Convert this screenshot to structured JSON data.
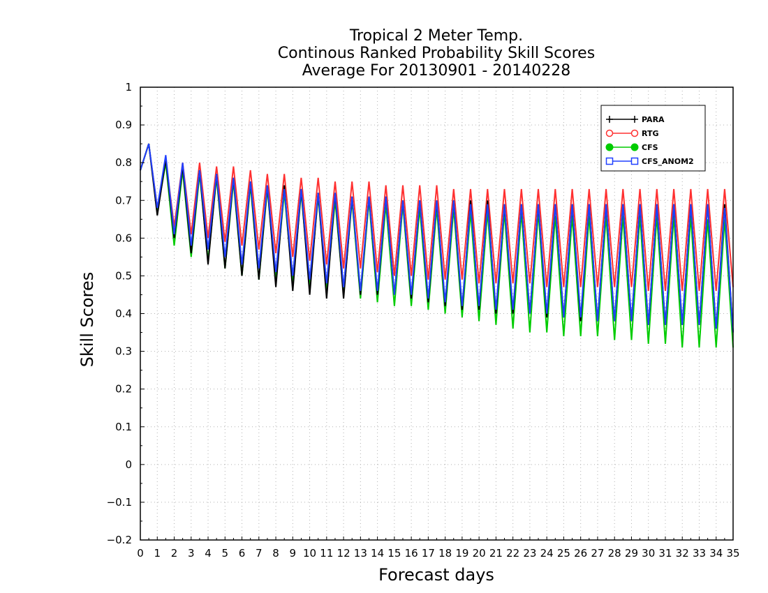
{
  "chart_data": {
    "type": "line",
    "title_lines": [
      "Tropical 2 Meter Temp.",
      "Continous Ranked Probability Skill Scores",
      "Average For 20130901 - 20140228"
    ],
    "xlabel": "Forecast days",
    "ylabel": "Skill Scores",
    "xlim": [
      0,
      35
    ],
    "ylim": [
      -0.2,
      1
    ],
    "x_ticks": [
      "0",
      "1",
      "2",
      "3",
      "4",
      "5",
      "6",
      "7",
      "8",
      "9",
      "10",
      "11",
      "12",
      "13",
      "14",
      "15",
      "16",
      "17",
      "18",
      "19",
      "20",
      "21",
      "22",
      "23",
      "24",
      "25",
      "26",
      "27",
      "28",
      "29",
      "30",
      "31",
      "32",
      "33",
      "34",
      "35"
    ],
    "y_ticks": [
      "−0.2",
      "−0.1",
      "0",
      "0.1",
      "0.2",
      "0.3",
      "0.4",
      "0.5",
      "0.6",
      "0.7",
      "0.8",
      "0.9",
      "1"
    ],
    "grid": true,
    "legend_position": "top-right",
    "x_step": 0.5,
    "series": [
      {
        "name": "PARA",
        "color": "#000000",
        "marker": "plus",
        "values": [
          0.78,
          0.85,
          0.66,
          0.81,
          0.6,
          0.79,
          0.56,
          0.78,
          0.53,
          0.77,
          0.52,
          0.76,
          0.5,
          0.75,
          0.49,
          0.74,
          0.47,
          0.74,
          0.46,
          0.73,
          0.45,
          0.72,
          0.44,
          0.72,
          0.44,
          0.71,
          0.45,
          0.71,
          0.45,
          0.71,
          0.45,
          0.7,
          0.44,
          0.7,
          0.43,
          0.7,
          0.42,
          0.7,
          0.41,
          0.7,
          0.41,
          0.7,
          0.4,
          0.69,
          0.4,
          0.69,
          0.4,
          0.69,
          0.39,
          0.69,
          0.39,
          0.69,
          0.38,
          0.69,
          0.38,
          0.69,
          0.38,
          0.69,
          0.38,
          0.69,
          0.37,
          0.69,
          0.37,
          0.69,
          0.37,
          0.69,
          0.37,
          0.69,
          0.36,
          0.69,
          0.35
        ]
      },
      {
        "name": "RTG",
        "color": "#ff3030",
        "marker": "circle",
        "values": [
          0.78,
          0.85,
          0.68,
          0.81,
          0.63,
          0.8,
          0.61,
          0.8,
          0.6,
          0.79,
          0.59,
          0.79,
          0.58,
          0.78,
          0.57,
          0.77,
          0.56,
          0.77,
          0.55,
          0.76,
          0.54,
          0.76,
          0.53,
          0.75,
          0.52,
          0.75,
          0.52,
          0.75,
          0.51,
          0.74,
          0.5,
          0.74,
          0.5,
          0.74,
          0.49,
          0.74,
          0.49,
          0.73,
          0.49,
          0.73,
          0.48,
          0.73,
          0.48,
          0.73,
          0.48,
          0.73,
          0.48,
          0.73,
          0.47,
          0.73,
          0.47,
          0.73,
          0.47,
          0.73,
          0.47,
          0.73,
          0.47,
          0.73,
          0.47,
          0.73,
          0.46,
          0.73,
          0.46,
          0.73,
          0.46,
          0.73,
          0.46,
          0.73,
          0.46,
          0.73,
          0.47
        ]
      },
      {
        "name": "CFS",
        "color": "#00cc00",
        "marker": "filled-circle",
        "values": [
          0.78,
          0.85,
          0.67,
          0.8,
          0.58,
          0.78,
          0.55,
          0.77,
          0.54,
          0.76,
          0.52,
          0.75,
          0.5,
          0.74,
          0.49,
          0.73,
          0.49,
          0.72,
          0.48,
          0.72,
          0.47,
          0.71,
          0.46,
          0.7,
          0.45,
          0.7,
          0.44,
          0.7,
          0.43,
          0.69,
          0.42,
          0.69,
          0.42,
          0.68,
          0.41,
          0.68,
          0.4,
          0.68,
          0.39,
          0.67,
          0.38,
          0.67,
          0.37,
          0.67,
          0.36,
          0.67,
          0.35,
          0.67,
          0.35,
          0.66,
          0.34,
          0.66,
          0.34,
          0.66,
          0.34,
          0.66,
          0.33,
          0.66,
          0.33,
          0.66,
          0.32,
          0.66,
          0.32,
          0.66,
          0.31,
          0.66,
          0.31,
          0.65,
          0.31,
          0.65,
          0.31
        ]
      },
      {
        "name": "CFS_ANOM2",
        "color": "#2040ff",
        "marker": "square",
        "values": [
          0.78,
          0.85,
          0.68,
          0.82,
          0.61,
          0.8,
          0.58,
          0.78,
          0.57,
          0.77,
          0.55,
          0.76,
          0.53,
          0.75,
          0.52,
          0.74,
          0.51,
          0.73,
          0.5,
          0.73,
          0.49,
          0.72,
          0.48,
          0.72,
          0.47,
          0.71,
          0.46,
          0.71,
          0.46,
          0.71,
          0.45,
          0.7,
          0.45,
          0.7,
          0.44,
          0.7,
          0.43,
          0.7,
          0.42,
          0.69,
          0.42,
          0.69,
          0.41,
          0.69,
          0.41,
          0.69,
          0.4,
          0.69,
          0.4,
          0.69,
          0.39,
          0.69,
          0.39,
          0.69,
          0.38,
          0.69,
          0.38,
          0.69,
          0.38,
          0.69,
          0.37,
          0.69,
          0.37,
          0.69,
          0.37,
          0.69,
          0.37,
          0.69,
          0.36,
          0.68,
          0.35
        ]
      }
    ]
  }
}
